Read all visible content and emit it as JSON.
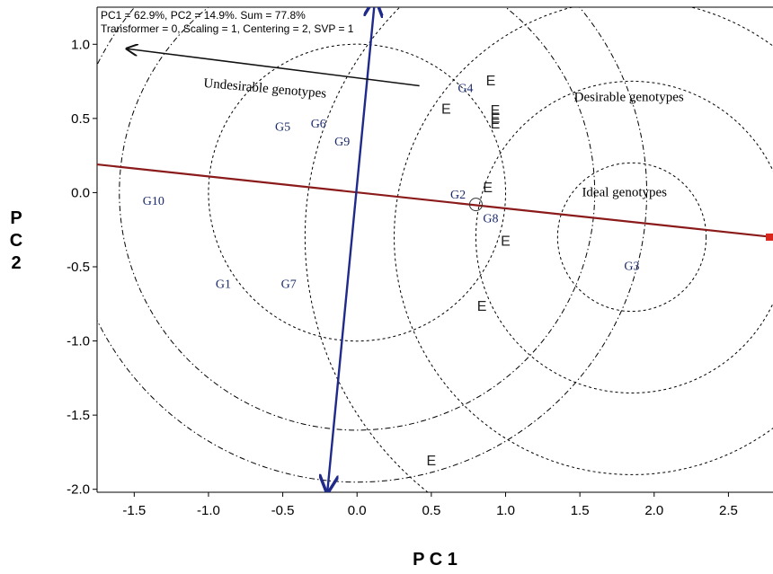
{
  "chart_data": {
    "type": "scatter",
    "title": "",
    "xlabel": "P C 1",
    "ylabel": "P C 2",
    "xlim": [
      -1.75,
      2.8
    ],
    "ylim": [
      -2.02,
      1.25
    ],
    "x_ticks": [
      -1.5,
      -1.0,
      -0.5,
      0.0,
      0.5,
      1.0,
      1.5,
      2.0,
      2.5
    ],
    "y_ticks": [
      1.0,
      0.5,
      0.0,
      -0.5,
      -1.0,
      -1.5,
      -2.0
    ],
    "grid": false,
    "info_lines": [
      "PC1 = 62.9%, PC2 = 14.9%. Sum = 77.8%",
      "Transformer = 0, Scaling = 1, Centering = 2, SVP = 1"
    ],
    "genotypes": [
      {
        "label": "G1",
        "x": -0.9,
        "y": -0.62
      },
      {
        "label": "G2",
        "x": 0.68,
        "y": -0.02
      },
      {
        "label": "G3",
        "x": 1.85,
        "y": -0.5
      },
      {
        "label": "G4",
        "x": 0.73,
        "y": 0.7
      },
      {
        "label": "G5",
        "x": -0.5,
        "y": 0.44
      },
      {
        "label": "G6",
        "x": -0.26,
        "y": 0.46
      },
      {
        "label": "G7",
        "x": -0.46,
        "y": -0.62
      },
      {
        "label": "G8",
        "x": 0.9,
        "y": -0.18
      },
      {
        "label": "G9",
        "x": -0.1,
        "y": 0.34
      },
      {
        "label": "G10",
        "x": -1.37,
        "y": -0.06
      }
    ],
    "environments": [
      {
        "label": "E",
        "x": 0.9,
        "y": 0.75
      },
      {
        "label": "E",
        "x": 0.6,
        "y": 0.56
      },
      {
        "label": "E",
        "x": 0.93,
        "y": 0.55
      },
      {
        "label": "E",
        "x": 0.93,
        "y": 0.5
      },
      {
        "label": "E",
        "x": 0.93,
        "y": 0.46
      },
      {
        "label": "E",
        "x": 0.88,
        "y": 0.03
      },
      {
        "label": "E",
        "x": 1.0,
        "y": -0.33
      },
      {
        "label": "E",
        "x": 0.84,
        "y": -0.77
      },
      {
        "label": "E",
        "x": 0.5,
        "y": -1.81
      }
    ],
    "average_environment_point": {
      "x": 0.8,
      "y": -0.08
    },
    "average_environment_axis": {
      "start": [
        -1.75,
        0.19
      ],
      "end": [
        2.8,
        -0.3
      ]
    },
    "perpendicular_axis": {
      "start": [
        0.12,
        1.3
      ],
      "end": [
        -0.2,
        -2.02
      ]
    },
    "undesirable_arrow": {
      "from": [
        0.42,
        0.72
      ],
      "to": [
        -1.55,
        0.97
      ]
    },
    "ideal_center": {
      "x": 1.85,
      "y": -0.3
    },
    "concentric_radii": [
      0.5,
      1.05,
      1.6,
      2.2
    ],
    "side_circle_radii": [
      1.0,
      1.6,
      1.95
    ],
    "regions": [
      {
        "label": "Undesirable genotypes",
        "x": -0.62,
        "y": 0.7,
        "rotate": 5
      },
      {
        "label": "Desirable genotypes",
        "x": 1.83,
        "y": 0.64,
        "rotate": 0
      },
      {
        "label": "Ideal genotypes",
        "x": 1.8,
        "y": 0.0,
        "rotate": 0
      }
    ],
    "colors": {
      "axis_line": "#8b1a1a",
      "axis_end_marker": "#d9261c",
      "perpendicular_line": "#1f2a8a",
      "arrow": "#111111",
      "genotype_text": "#1a2a6c",
      "environment_text": "#222222"
    }
  }
}
